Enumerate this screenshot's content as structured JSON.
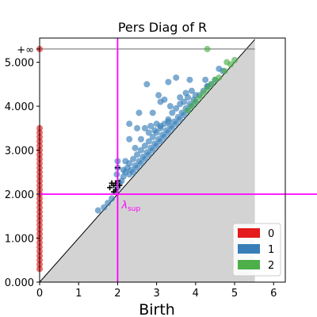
{
  "chart_data": {
    "type": "scatter",
    "title": "Pers Diag of R",
    "xlabel": "Birth",
    "ylabel": "",
    "xlim": [
      0,
      6.3
    ],
    "ylim": [
      0,
      5.55
    ],
    "xticks": [
      0,
      1,
      2,
      3,
      4,
      5,
      6
    ],
    "xtick_labels": [
      "0",
      "1",
      "2",
      "3",
      "4",
      "5",
      "6"
    ],
    "yticks": [
      0,
      1,
      2,
      3,
      4,
      5
    ],
    "ytick_labels": [
      "0.000",
      "1.000",
      "2.000",
      "3.000",
      "4.000",
      "5.000"
    ],
    "infinity_label": "+∞",
    "infinity_value": 5.3,
    "diagonal_max": 5.52,
    "lambda_sup_label": "λ",
    "lambda_sup_subscript": "sup",
    "lambda_sup": {
      "x": 2.0,
      "y": 2.0
    },
    "legend": {
      "placement": "lower-right",
      "entries": [
        "0",
        "1",
        "2"
      ]
    },
    "colors": {
      "dim0": "#e41a1c",
      "dim1": "#377eb8",
      "dim2": "#4daf4a",
      "crosshair": "#ff00ff",
      "infinity_line": "#666666",
      "region": "#d3d3d3"
    },
    "series": [
      {
        "name": "0",
        "points": [
          [
            0,
            0.3
          ],
          [
            0,
            0.4
          ],
          [
            0,
            0.5
          ],
          [
            0,
            0.6
          ],
          [
            0,
            0.7
          ],
          [
            0,
            0.8
          ],
          [
            0,
            0.9
          ],
          [
            0,
            1.0
          ],
          [
            0,
            1.1
          ],
          [
            0,
            1.2
          ],
          [
            0,
            1.3
          ],
          [
            0,
            1.4
          ],
          [
            0,
            1.5
          ],
          [
            0,
            1.6
          ],
          [
            0,
            1.7
          ],
          [
            0,
            1.8
          ],
          [
            0,
            1.9
          ],
          [
            0,
            2.0
          ],
          [
            0,
            2.1
          ],
          [
            0,
            2.2
          ],
          [
            0,
            2.3
          ],
          [
            0,
            2.4
          ],
          [
            0,
            2.5
          ],
          [
            0,
            2.6
          ],
          [
            0,
            2.7
          ],
          [
            0,
            2.8
          ],
          [
            0,
            2.9
          ],
          [
            0,
            3.0
          ],
          [
            0,
            3.1
          ],
          [
            0,
            3.2
          ],
          [
            0,
            3.3
          ],
          [
            0,
            3.4
          ],
          [
            0,
            3.5
          ],
          [
            0,
            5.3
          ]
        ]
      },
      {
        "name": "1",
        "points": [
          [
            1.5,
            1.63
          ],
          [
            1.65,
            1.7
          ],
          [
            1.75,
            1.8
          ],
          [
            1.85,
            1.9
          ],
          [
            1.95,
            2.05
          ],
          [
            2.0,
            2.15
          ],
          [
            2.05,
            2.25
          ],
          [
            2.0,
            2.75
          ],
          [
            2.0,
            2.6
          ],
          [
            1.98,
            2.45
          ],
          [
            2.1,
            2.3
          ],
          [
            2.15,
            2.4
          ],
          [
            2.2,
            2.5
          ],
          [
            2.25,
            2.6
          ],
          [
            2.3,
            2.45
          ],
          [
            2.3,
            2.7
          ],
          [
            2.35,
            2.55
          ],
          [
            2.4,
            2.8
          ],
          [
            2.4,
            2.5
          ],
          [
            2.45,
            2.65
          ],
          [
            2.5,
            2.9
          ],
          [
            2.5,
            2.6
          ],
          [
            2.55,
            2.75
          ],
          [
            2.6,
            3.0
          ],
          [
            2.6,
            2.7
          ],
          [
            2.65,
            2.85
          ],
          [
            2.7,
            3.1
          ],
          [
            2.7,
            2.8
          ],
          [
            2.75,
            2.95
          ],
          [
            2.8,
            3.2
          ],
          [
            2.8,
            2.9
          ],
          [
            2.85,
            3.05
          ],
          [
            2.9,
            3.3
          ],
          [
            2.9,
            3.0
          ],
          [
            2.95,
            3.15
          ],
          [
            3.0,
            3.4
          ],
          [
            3.0,
            3.1
          ],
          [
            3.05,
            3.25
          ],
          [
            3.1,
            3.5
          ],
          [
            3.1,
            3.2
          ],
          [
            3.15,
            3.35
          ],
          [
            3.2,
            3.6
          ],
          [
            3.2,
            3.3
          ],
          [
            3.25,
            3.45
          ],
          [
            3.3,
            3.7
          ],
          [
            3.3,
            3.4
          ],
          [
            3.35,
            3.55
          ],
          [
            3.4,
            3.5
          ],
          [
            3.45,
            3.65
          ],
          [
            3.5,
            3.6
          ],
          [
            3.55,
            3.75
          ],
          [
            3.6,
            3.7
          ],
          [
            3.65,
            3.85
          ],
          [
            3.7,
            3.8
          ],
          [
            3.75,
            3.95
          ],
          [
            3.8,
            3.9
          ],
          [
            3.85,
            4.05
          ],
          [
            3.9,
            4.0
          ],
          [
            3.95,
            4.15
          ],
          [
            4.0,
            4.1
          ],
          [
            4.1,
            4.25
          ],
          [
            4.2,
            4.35
          ],
          [
            4.3,
            4.45
          ],
          [
            4.4,
            4.5
          ],
          [
            4.5,
            4.6
          ],
          [
            4.6,
            4.85
          ],
          [
            4.7,
            4.8
          ],
          [
            2.3,
            3.25
          ],
          [
            2.3,
            3.6
          ],
          [
            2.5,
            3.5
          ],
          [
            2.55,
            3.85
          ],
          [
            2.7,
            3.5
          ],
          [
            2.75,
            4.5
          ],
          [
            2.9,
            3.85
          ],
          [
            3.05,
            4.25
          ],
          [
            3.1,
            4.1
          ],
          [
            3.2,
            4.15
          ],
          [
            3.3,
            4.55
          ],
          [
            3.35,
            4.0
          ],
          [
            3.5,
            4.65
          ],
          [
            3.6,
            4.2
          ],
          [
            3.75,
            4.3
          ],
          [
            3.85,
            4.6
          ],
          [
            4.0,
            4.25
          ],
          [
            4.25,
            4.6
          ],
          [
            4.3,
            4.45
          ],
          [
            3.3,
            3.65
          ],
          [
            3.1,
            3.55
          ],
          [
            2.95,
            3.45
          ],
          [
            2.85,
            3.55
          ],
          [
            3.5,
            3.95
          ],
          [
            3.7,
            4.1
          ],
          [
            3.9,
            4.35
          ],
          [
            2.2,
            2.75
          ],
          [
            2.15,
            2.55
          ],
          [
            2.45,
            3.05
          ],
          [
            2.6,
            3.25
          ],
          [
            2.8,
            3.4
          ],
          [
            3.0,
            3.6
          ],
          [
            3.4,
            3.85
          ],
          [
            3.6,
            4.05
          ],
          [
            3.8,
            4.2
          ]
        ]
      },
      {
        "name": "2",
        "points": [
          [
            4.3,
            5.3
          ],
          [
            4.8,
            5.0
          ],
          [
            5.0,
            5.05
          ],
          [
            4.9,
            4.95
          ],
          [
            4.75,
            4.8
          ],
          [
            4.6,
            4.65
          ],
          [
            4.5,
            4.6
          ],
          [
            4.4,
            4.5
          ],
          [
            4.3,
            4.4
          ],
          [
            4.2,
            4.3
          ],
          [
            4.1,
            4.2
          ],
          [
            4.0,
            4.1
          ],
          [
            3.9,
            4.0
          ],
          [
            3.8,
            3.9
          ]
        ]
      }
    ],
    "plus_markers": [
      [
        1.8,
        2.15
      ],
      [
        1.85,
        2.25
      ],
      [
        1.9,
        2.2
      ],
      [
        1.95,
        2.1
      ],
      [
        2.0,
        2.3
      ],
      [
        1.95,
        2.25
      ],
      [
        1.9,
        2.05
      ],
      [
        2.0,
        2.6
      ],
      [
        2.05,
        2.2
      ]
    ]
  }
}
